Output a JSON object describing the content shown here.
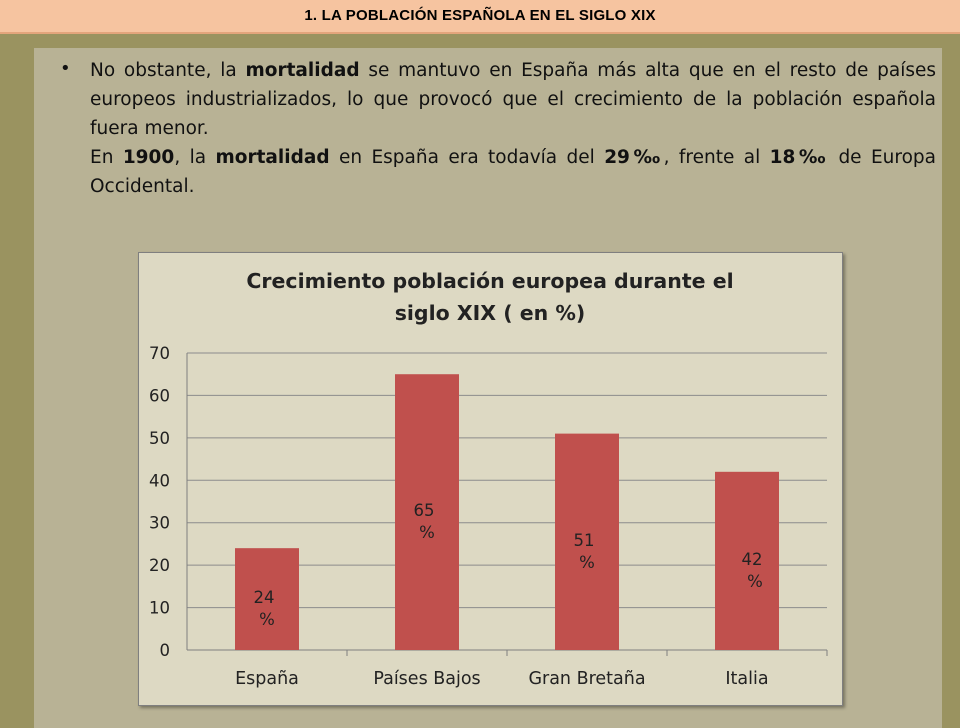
{
  "header": {
    "title": "1. LA POBLACIÓN ESPAÑOLA EN EL SIGLO XIX"
  },
  "text": {
    "para1_a": "No obstante, la ",
    "para1_b": "mortalidad",
    "para1_c": " se mantuvo en España más alta que en el resto de países europeos industrializados, lo que provocó que el crecimiento de la población española fuera menor.",
    "para2_a": "En ",
    "para2_b": "1900",
    "para2_c": ", la ",
    "para2_d": "mortalidad",
    "para2_e": " en España era todavía del ",
    "para2_f": "29‰",
    "para2_g": ", frente al ",
    "para2_h": "18‰",
    "para2_i": " de Europa Occidental."
  },
  "chart_data": {
    "type": "bar",
    "title": "Crecimiento población europea durante el siglo XIX ( en %)",
    "title_lines": [
      "Crecimiento población europea durante el",
      "siglo XIX ( en %)"
    ],
    "categories": [
      "España",
      "Países Bajos",
      "Gran Bretaña",
      "Italia"
    ],
    "values": [
      24,
      65,
      51,
      42
    ],
    "data_labels": [
      [
        "24",
        "%"
      ],
      [
        "65",
        "%"
      ],
      [
        "51",
        "%"
      ],
      [
        "42",
        "%"
      ]
    ],
    "ylim": [
      0,
      70
    ],
    "yticks": [
      0,
      10,
      20,
      30,
      40,
      50,
      60,
      70
    ],
    "grid": true,
    "legend": "none",
    "xlabel": "",
    "ylabel": "",
    "bar_color": "#c0504d"
  }
}
